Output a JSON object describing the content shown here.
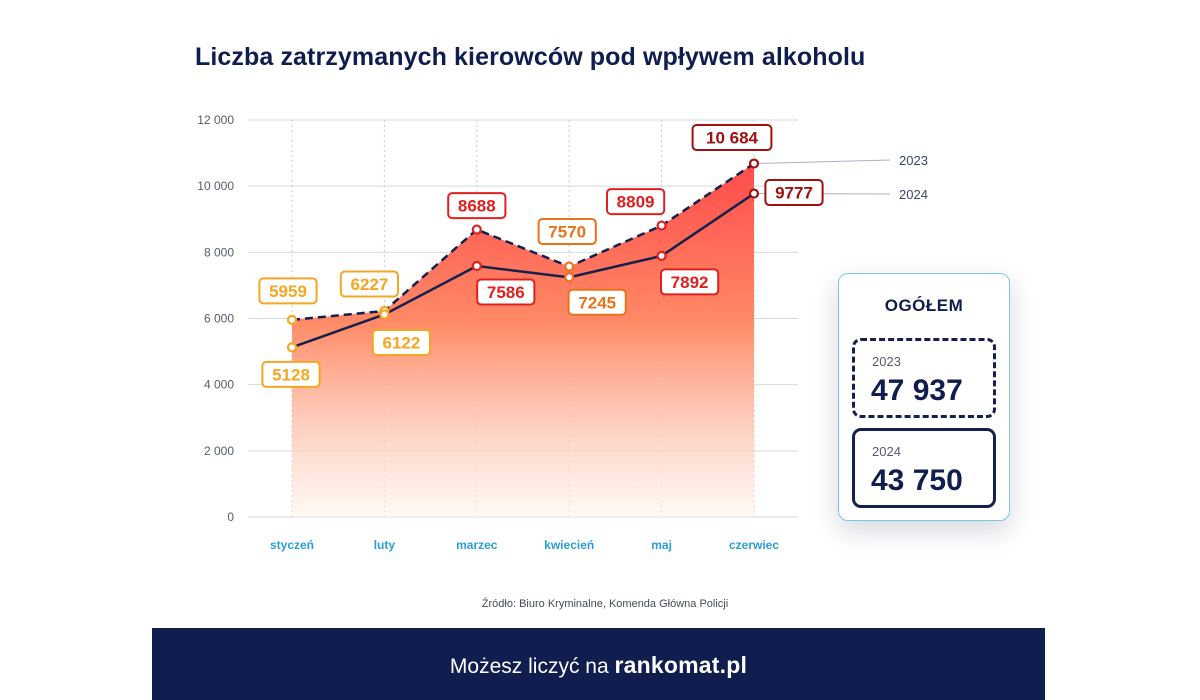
{
  "title": "Liczba zatrzymanych kierowców pod wpływem alkoholu",
  "source": "Źródło: Biuro Kryminalne, Komenda Główna Policji",
  "summary": {
    "heading": "OGÓŁEM",
    "y2023": {
      "year": "2023",
      "value": "47 937"
    },
    "y2024": {
      "year": "2024",
      "value": "43 750"
    }
  },
  "footer": {
    "text": "Możesz liczyć na",
    "brand": "rankomat.pl"
  },
  "chart_data": {
    "type": "line",
    "categories": [
      "styczeń",
      "luty",
      "marzec",
      "kwiecień",
      "maj",
      "czerwiec"
    ],
    "yticks": [
      "0",
      "2 000",
      "4 000",
      "6 000",
      "8 000",
      "10 000",
      "12 000"
    ],
    "ylim": [
      0,
      12000
    ],
    "grid": true,
    "series": [
      {
        "name": "2023",
        "style": "dashed",
        "values": [
          5959,
          6227,
          8688,
          7570,
          8809,
          10684
        ],
        "labels": [
          "5959",
          "6227",
          "8688",
          "7570",
          "8809",
          "10 684"
        ]
      },
      {
        "name": "2024",
        "style": "solid",
        "values": [
          5128,
          6122,
          7586,
          7245,
          7892,
          9777
        ],
        "labels": [
          "5128",
          "6122",
          "7586",
          "7245",
          "7892",
          "9777"
        ]
      }
    ],
    "label_colors": [
      "#f5a623",
      "#f5a623",
      "#e02020",
      "#e8731a",
      "#e02020",
      "#a01010"
    ],
    "colors": {
      "line": "#14214f",
      "fill_top": "#ff4b4b",
      "fill_bottom": "#fff4ec",
      "axis_text": "#555c6e",
      "category_text": "#2a9fd6"
    }
  }
}
